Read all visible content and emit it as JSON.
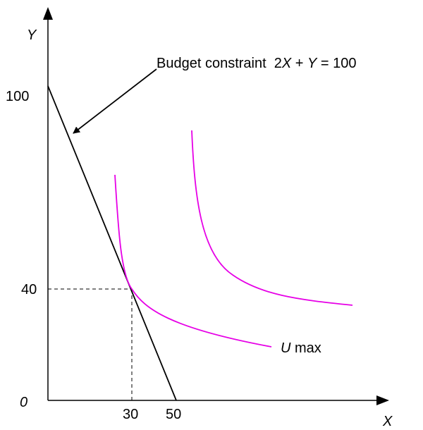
{
  "axes": {
    "y_label": "Y",
    "x_label": "X",
    "origin": "0"
  },
  "ticks": {
    "y_high": "100",
    "y_mid": "40",
    "x_mid": "30",
    "x_high": "50"
  },
  "budget_label": {
    "text": "Budget constraint  2",
    "var_x": "X",
    "plus": " + ",
    "var_y": "Y",
    "rhs": " = 100"
  },
  "curve_label": {
    "var": "U",
    "text": " max"
  }
}
